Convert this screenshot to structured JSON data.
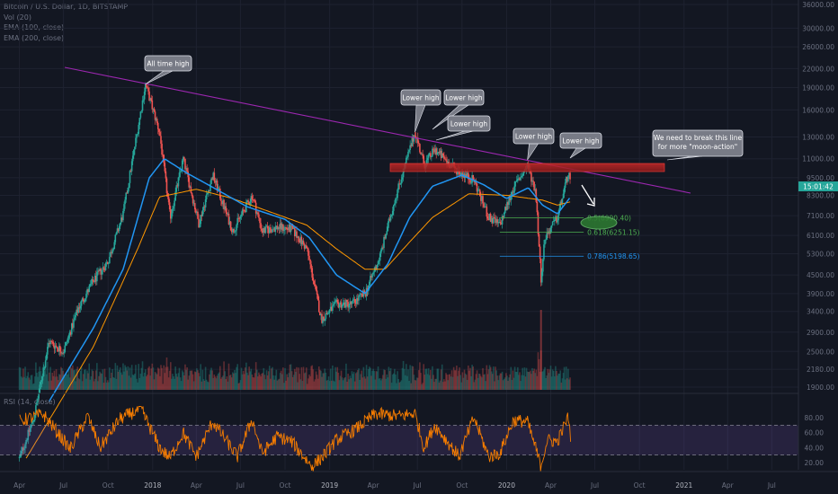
{
  "header": {
    "symbol": "Bitcoin / U.S. Dollar, 1D, BITSTAMP",
    "vol": "Vol (20)",
    "ema100": "EMA (100, close)",
    "ema200": "EMA (200, close)"
  },
  "rsi_label": "RSI (14, close)",
  "price_tag": "15:01:42",
  "colors": {
    "background": "#131722",
    "up": "#26a69a",
    "down": "#ef5350",
    "ema100": "#2196f3",
    "ema200": "#ff9800",
    "trendline": "#9c27b0",
    "rsi": "#f57c00",
    "resistance": "#b71c1c",
    "fib_05": "#4caf50",
    "fib_0618": "#4caf50",
    "fib_0786": "#2196f3"
  },
  "chart_data": {
    "type": "candlestick",
    "price_axis_ticks": [
      "36000.00",
      "30000.00",
      "26000.00",
      "22000.00",
      "19000.00",
      "16000.00",
      "13000.00",
      "11000.00",
      "9500.00",
      "8300.00",
      "7100.00",
      "6100.00",
      "5300.00",
      "4500.00",
      "3900.00",
      "3400.00",
      "2900.00",
      "2500.00",
      "2180.00",
      "1900.00"
    ],
    "rsi_axis_ticks": [
      "80.00",
      "60.00",
      "40.00",
      "20.00"
    ],
    "time_axis_ticks": [
      "Apr",
      "Jul",
      "Oct",
      "2018",
      "Apr",
      "Jul",
      "Oct",
      "2019",
      "Apr",
      "Jul",
      "Oct",
      "2020",
      "Apr",
      "Jul",
      "Oct",
      "2021",
      "Apr",
      "Jul"
    ],
    "price_series": [
      [
        "2017-04-01",
        1100
      ],
      [
        "2017-05-01",
        1500
      ],
      [
        "2017-06-01",
        2700
      ],
      [
        "2017-07-01",
        2500
      ],
      [
        "2017-08-01",
        3500
      ],
      [
        "2017-09-01",
        4300
      ],
      [
        "2017-10-01",
        5000
      ],
      [
        "2017-11-01",
        7200
      ],
      [
        "2017-12-17",
        19500
      ],
      [
        "2018-01-15",
        13500
      ],
      [
        "2018-02-06",
        7000
      ],
      [
        "2018-03-05",
        11000
      ],
      [
        "2018-04-06",
        6700
      ],
      [
        "2018-05-05",
        9700
      ],
      [
        "2018-06-15",
        6300
      ],
      [
        "2018-07-25",
        8300
      ],
      [
        "2018-08-15",
        6300
      ],
      [
        "2018-09-15",
        6500
      ],
      [
        "2018-10-15",
        6400
      ],
      [
        "2018-11-15",
        5500
      ],
      [
        "2018-12-15",
        3200
      ],
      [
        "2019-01-15",
        3600
      ],
      [
        "2019-02-15",
        3600
      ],
      [
        "2019-03-15",
        3900
      ],
      [
        "2019-04-15",
        5200
      ],
      [
        "2019-05-15",
        8000
      ],
      [
        "2019-06-26",
        13500
      ],
      [
        "2019-07-15",
        10500
      ],
      [
        "2019-08-06",
        11800
      ],
      [
        "2019-09-15",
        10200
      ],
      [
        "2019-10-26",
        9300
      ],
      [
        "2019-11-25",
        7000
      ],
      [
        "2019-12-18",
        6600
      ],
      [
        "2020-01-15",
        8800
      ],
      [
        "2020-02-13",
        10400
      ],
      [
        "2020-03-01",
        8600
      ],
      [
        "2020-03-12",
        4400
      ],
      [
        "2020-03-20",
        6000
      ],
      [
        "2020-04-15",
        7000
      ],
      [
        "2020-05-08",
        10000
      ],
      [
        "2020-05-12",
        8800
      ]
    ],
    "ema100": [
      [
        "2017-06-01",
        1700
      ],
      [
        "2017-09-01",
        3000
      ],
      [
        "2017-11-01",
        4700
      ],
      [
        "2017-12-25",
        9500
      ],
      [
        "2018-01-25",
        11000
      ],
      [
        "2018-03-15",
        9800
      ],
      [
        "2018-05-01",
        8900
      ],
      [
        "2018-07-15",
        7600
      ],
      [
        "2018-10-01",
        6900
      ],
      [
        "2018-11-20",
        6000
      ],
      [
        "2019-01-15",
        4500
      ],
      [
        "2019-03-15",
        3900
      ],
      [
        "2019-05-01",
        4900
      ],
      [
        "2019-06-15",
        7000
      ],
      [
        "2019-08-01",
        8900
      ],
      [
        "2019-10-01",
        9700
      ],
      [
        "2019-11-15",
        9000
      ],
      [
        "2020-01-01",
        8100
      ],
      [
        "2020-02-15",
        8800
      ],
      [
        "2020-03-15",
        7700
      ],
      [
        "2020-04-15",
        7200
      ],
      [
        "2020-05-12",
        8200
      ]
    ],
    "ema200": [
      [
        "2017-04-15",
        1100
      ],
      [
        "2017-09-01",
        2600
      ],
      [
        "2017-12-01",
        5500
      ],
      [
        "2018-01-15",
        8200
      ],
      [
        "2018-04-01",
        8700
      ],
      [
        "2018-06-15",
        8100
      ],
      [
        "2018-09-01",
        7300
      ],
      [
        "2018-11-15",
        6600
      ],
      [
        "2019-01-15",
        5500
      ],
      [
        "2019-03-15",
        4700
      ],
      [
        "2019-04-25",
        4700
      ],
      [
        "2019-06-15",
        5800
      ],
      [
        "2019-08-01",
        7000
      ],
      [
        "2019-10-15",
        8400
      ],
      [
        "2020-01-01",
        8300
      ],
      [
        "2020-03-15",
        8000
      ],
      [
        "2020-04-15",
        7700
      ],
      [
        "2020-05-12",
        7900
      ]
    ],
    "rsi": [
      [
        "2017-04-01",
        75
      ],
      [
        "2017-05-20",
        85
      ],
      [
        "2017-07-15",
        38
      ],
      [
        "2017-08-20",
        82
      ],
      [
        "2017-09-15",
        40
      ],
      [
        "2017-10-25",
        78
      ],
      [
        "2017-12-08",
        92
      ],
      [
        "2018-01-15",
        40
      ],
      [
        "2018-02-06",
        26
      ],
      [
        "2018-03-05",
        60
      ],
      [
        "2018-04-01",
        28
      ],
      [
        "2018-05-05",
        75
      ],
      [
        "2018-06-25",
        28
      ],
      [
        "2018-07-25",
        78
      ],
      [
        "2018-08-15",
        32
      ],
      [
        "2018-09-15",
        55
      ],
      [
        "2018-10-15",
        48
      ],
      [
        "2018-11-25",
        15
      ],
      [
        "2018-12-15",
        26
      ],
      [
        "2019-01-15",
        50
      ],
      [
        "2019-02-25",
        65
      ],
      [
        "2019-04-05",
        85
      ],
      [
        "2019-05-25",
        82
      ],
      [
        "2019-06-26",
        86
      ],
      [
        "2019-07-15",
        40
      ],
      [
        "2019-08-06",
        70
      ],
      [
        "2019-09-25",
        28
      ],
      [
        "2019-10-26",
        80
      ],
      [
        "2019-11-25",
        28
      ],
      [
        "2019-12-18",
        32
      ],
      [
        "2020-01-15",
        76
      ],
      [
        "2020-02-13",
        75
      ],
      [
        "2020-03-12",
        16
      ],
      [
        "2020-03-25",
        50
      ],
      [
        "2020-04-15",
        48
      ],
      [
        "2020-05-08",
        82
      ],
      [
        "2020-05-12",
        56
      ]
    ],
    "annotations": [
      {
        "text": "All time high",
        "date": "2017-12-17",
        "price": 19500
      },
      {
        "text": "Lower high",
        "date": "2019-06-26",
        "price": 13500
      },
      {
        "text": "Lower high",
        "date": "2019-07-10",
        "price": 13000
      },
      {
        "text": "Lower high",
        "date": "2019-08-06",
        "price": 12100
      },
      {
        "text": "Lower high",
        "date": "2020-02-13",
        "price": 10500
      },
      {
        "text": "Lower high",
        "date": "2020-05-08",
        "price": 10000
      },
      {
        "text": "We need to break this line",
        "text2": "for more \"moon-action\""
      }
    ],
    "fib_levels": [
      {
        "label": "0.5(6990.40)",
        "price": 6990.4
      },
      {
        "label": "0.618(6251.15)",
        "price": 6251.15
      },
      {
        "label": "0.786(5198.65)",
        "price": 5198.65
      }
    ]
  }
}
